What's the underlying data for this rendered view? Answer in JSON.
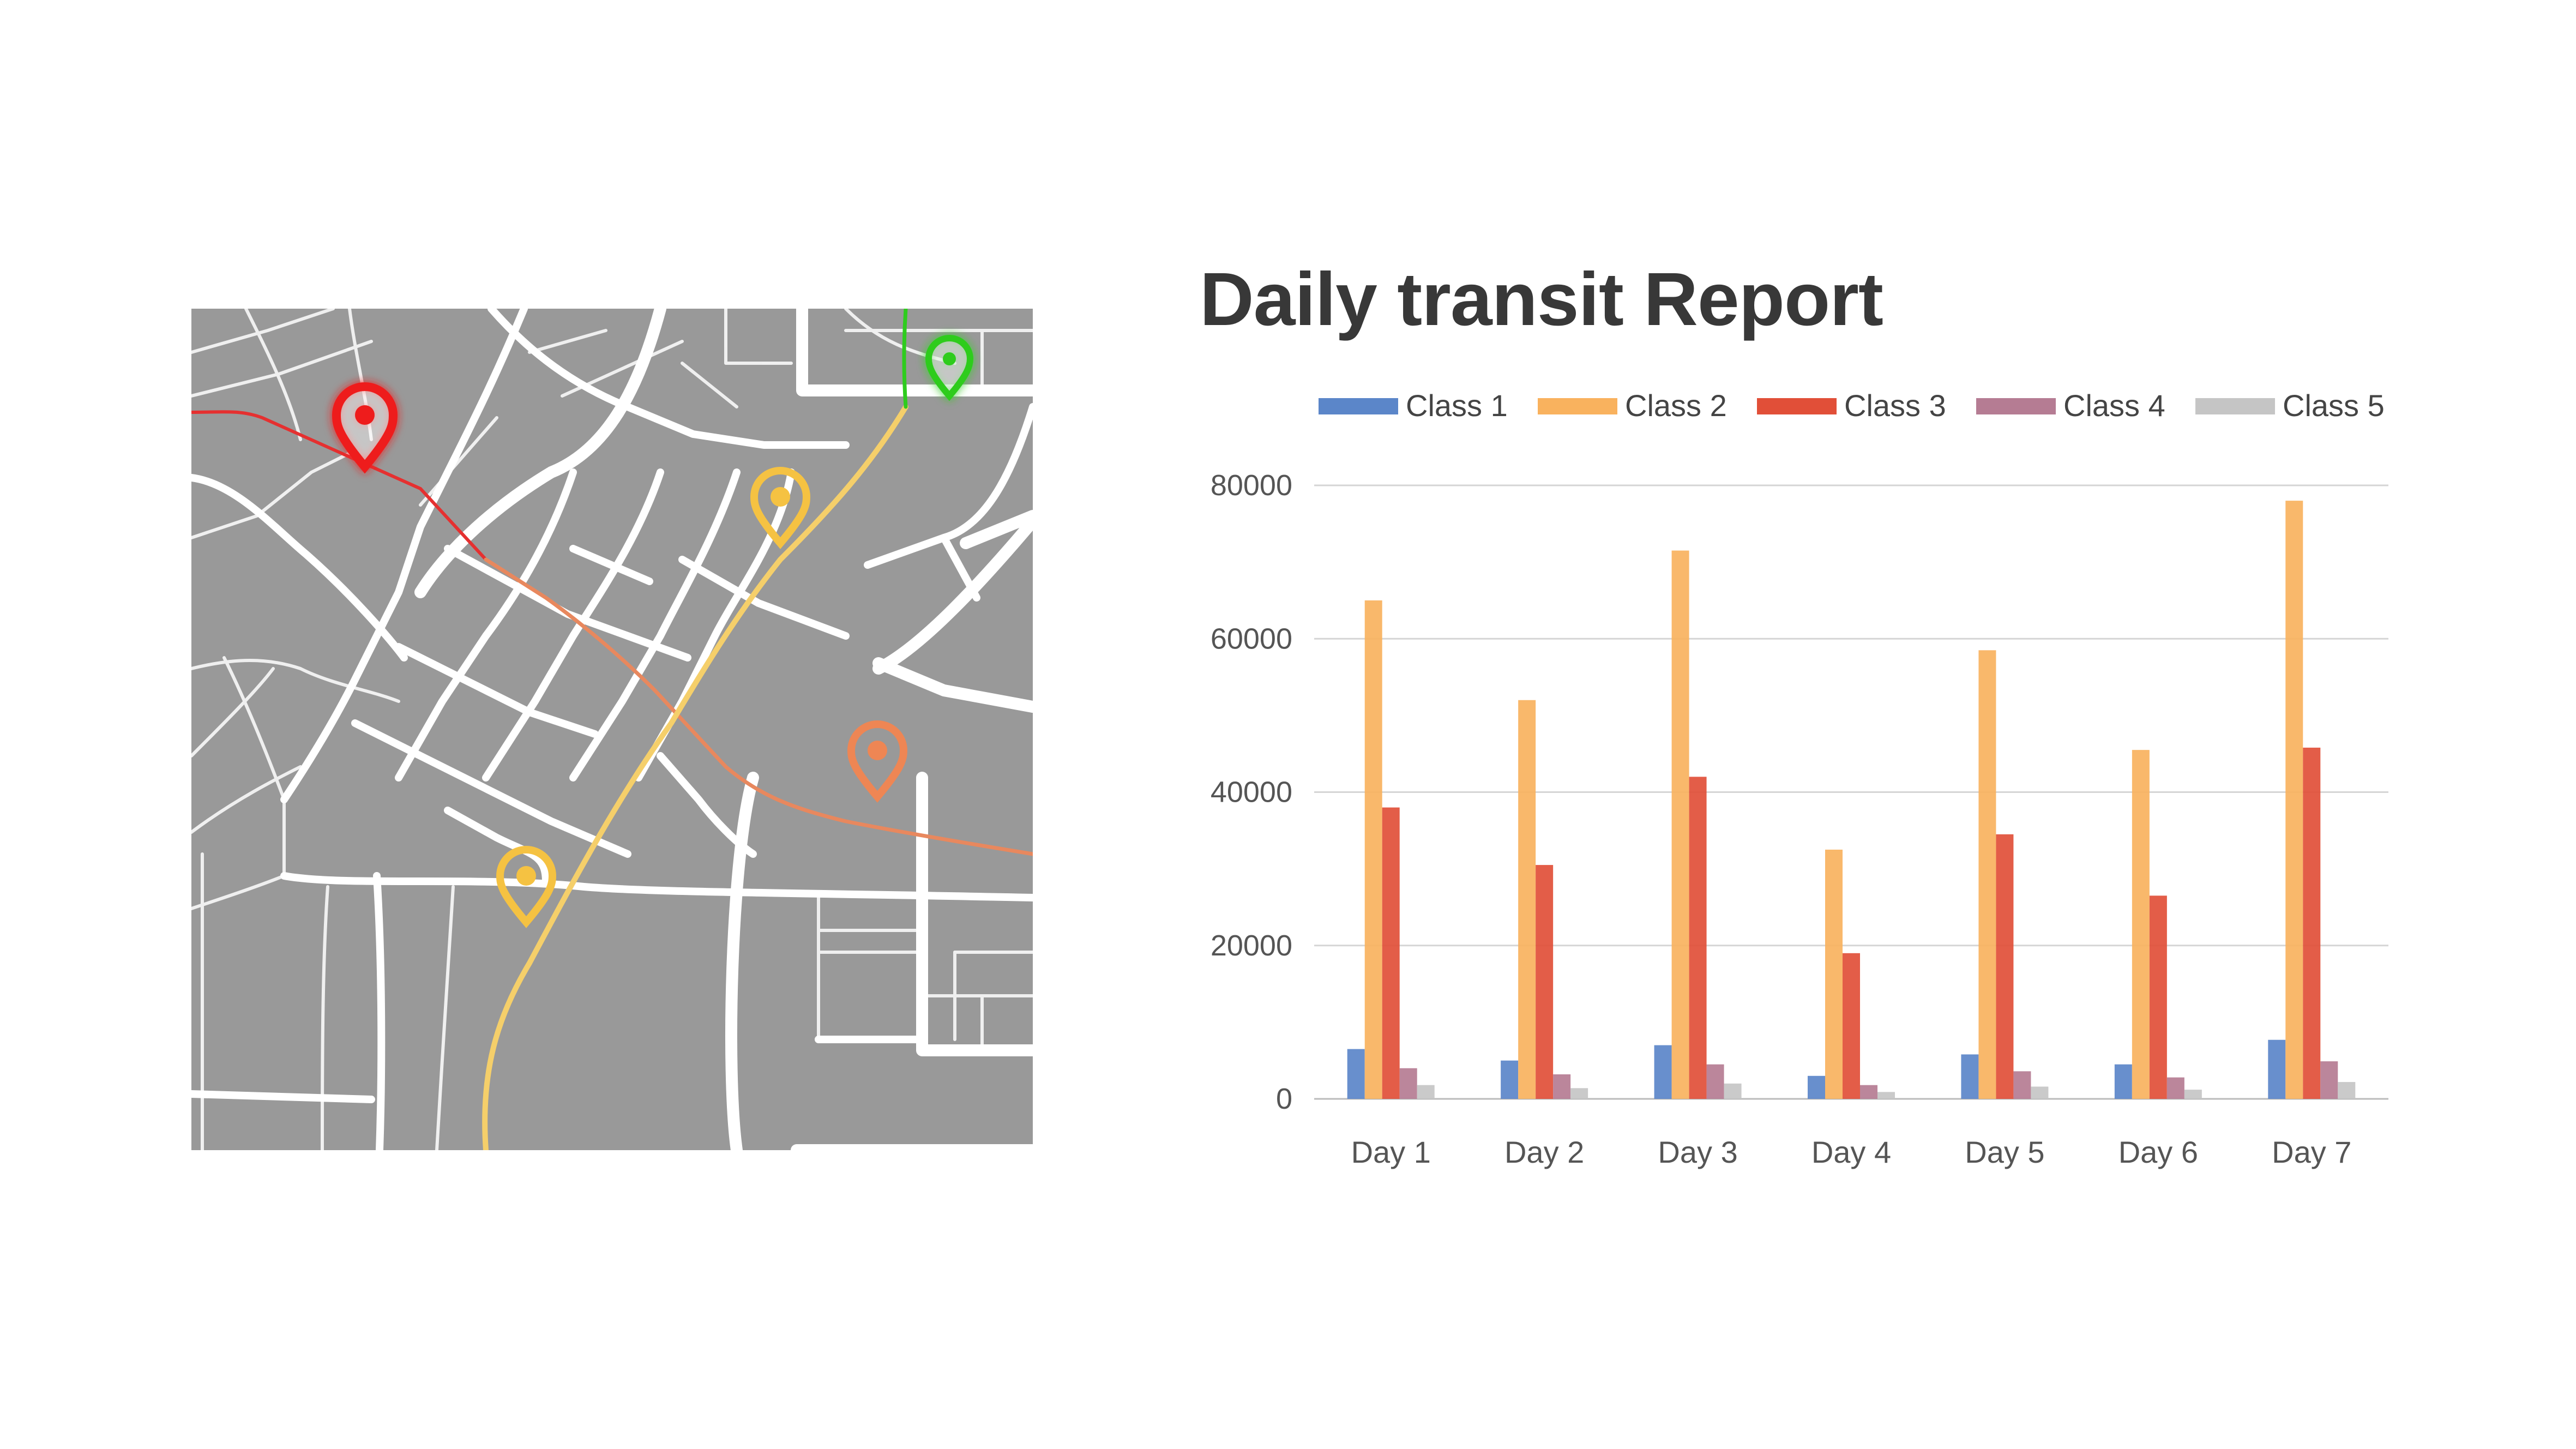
{
  "report": {
    "title": "Daily transit Report"
  },
  "map": {
    "pins": [
      {
        "icon": "map-pin-icon",
        "color": "#ee1c1c"
      },
      {
        "icon": "map-pin-icon",
        "color": "#2ecc1e"
      },
      {
        "icon": "map-pin-icon",
        "color": "#f5c242"
      },
      {
        "icon": "map-pin-icon",
        "color": "#ee8654"
      },
      {
        "icon": "map-pin-icon",
        "color": "#f5c242"
      }
    ],
    "colors": {
      "background": "#999999",
      "roads": "#ffffff",
      "route_red": "#e53030",
      "route_orange": "#e8885e",
      "route_yellow": "#f5cf6a",
      "route_green": "#2ecc1e"
    }
  },
  "chart_data": {
    "type": "bar",
    "categories": [
      "Day 1",
      "Day 2",
      "Day 3",
      "Day 4",
      "Day 5",
      "Day 6",
      "Day 7"
    ],
    "series": [
      {
        "name": "Class 1",
        "color": "#5b86c9",
        "values": [
          6500,
          5000,
          7000,
          3000,
          5800,
          4500,
          7700
        ]
      },
      {
        "name": "Class 2",
        "color": "#f9b25e",
        "values": [
          65000,
          52000,
          71500,
          32500,
          58500,
          45500,
          78000
        ]
      },
      {
        "name": "Class 3",
        "color": "#e14f38",
        "values": [
          38000,
          30500,
          42000,
          19000,
          34500,
          26500,
          45800
        ]
      },
      {
        "name": "Class 4",
        "color": "#b57c93",
        "values": [
          4000,
          3200,
          4500,
          1800,
          3600,
          2800,
          4900
        ]
      },
      {
        "name": "Class 5",
        "color": "#c5c5c5",
        "values": [
          1800,
          1400,
          2000,
          900,
          1600,
          1200,
          2200
        ]
      }
    ],
    "ylim": [
      0,
      80000
    ],
    "yticks": [
      "0",
      "20000",
      "40000",
      "60000",
      "80000"
    ],
    "grid": true,
    "legend": "top"
  }
}
